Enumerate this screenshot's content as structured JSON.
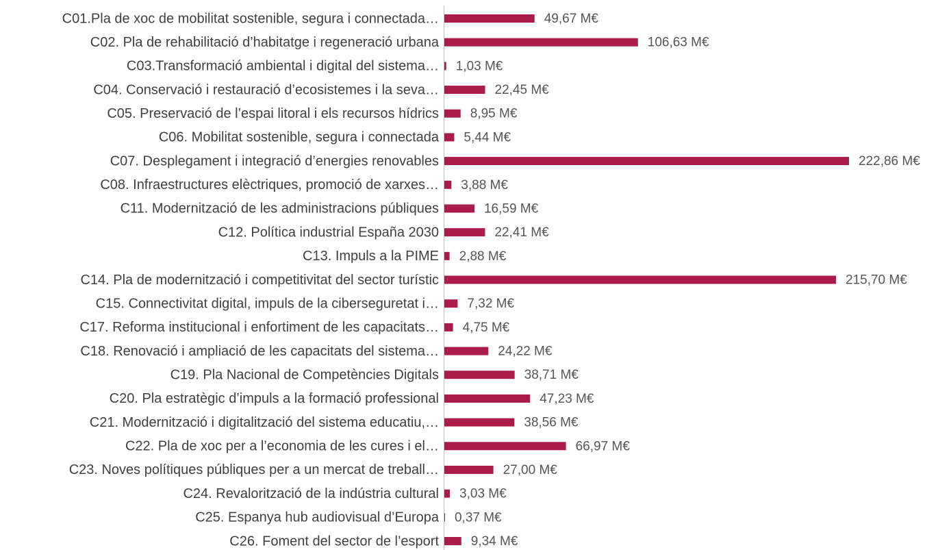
{
  "chart_data": {
    "type": "bar",
    "orientation": "horizontal",
    "color": "#ab1c4b",
    "categories": [
      "C01.Pla de xoc de mobilitat sostenible, segura i connectada…",
      "C02. Pla de rehabilitació d’habitatge i regeneració urbana",
      "C03.Transformació ambiental i digital del sistema…",
      "C04. Conservació i restauració d’ecosistemes i la seva…",
      "C05. Preservació de l’espai litoral i els recursos hídrics",
      "C06. Mobilitat sostenible, segura i connectada",
      "C07. Desplegament i integració d’energies renovables",
      "C08. Infraestructures elèctriques, promoció de xarxes…",
      "C11. Modernització de les administracions públiques",
      "C12. Política industrial España 2030",
      "C13. Impuls a la PIME",
      "C14. Pla de modernització i competitivitat del sector turístic",
      "C15. Connectivitat digital, impuls de la ciberseguretat i…",
      "C17. Reforma institucional i enfortiment de les capacitats…",
      "C18. Renovació i ampliació de les capacitats del sistema…",
      "C19. Pla Nacional de Competències Digitals",
      "C20. Pla estratègic d’impuls a la formació professional",
      "C21. Modernització i digitalització del sistema educatiu,…",
      "C22. Pla de xoc per a l’economia de les cures i el…",
      "C23. Noves polítiques públiques per a un mercat de treball…",
      "C24. Revalorització de la indústria cultural",
      "C25. Espanya hub audiovisual d’Europa",
      "C26. Foment del sector de l’esport"
    ],
    "values": [
      49.67,
      106.63,
      1.03,
      22.45,
      8.95,
      5.44,
      222.86,
      3.88,
      16.59,
      22.41,
      2.88,
      215.7,
      7.32,
      4.75,
      24.22,
      38.71,
      47.23,
      38.56,
      66.97,
      27.0,
      3.03,
      0.37,
      9.34
    ],
    "value_labels": [
      "49,67 M€",
      "106,63 M€",
      "1,03 M€",
      "22,45 M€",
      "8,95 M€",
      "5,44 M€",
      "222,86 M€",
      "3,88 M€",
      "16,59 M€",
      "22,41 M€",
      "2,88 M€",
      "215,70 M€",
      "7,32 M€",
      "4,75 M€",
      "24,22 M€",
      "38,71 M€",
      "47,23 M€",
      "38,56 M€",
      "66,97 M€",
      "27,00 M€",
      "3,03 M€",
      "0,37 M€",
      "9,34 M€"
    ]
  }
}
